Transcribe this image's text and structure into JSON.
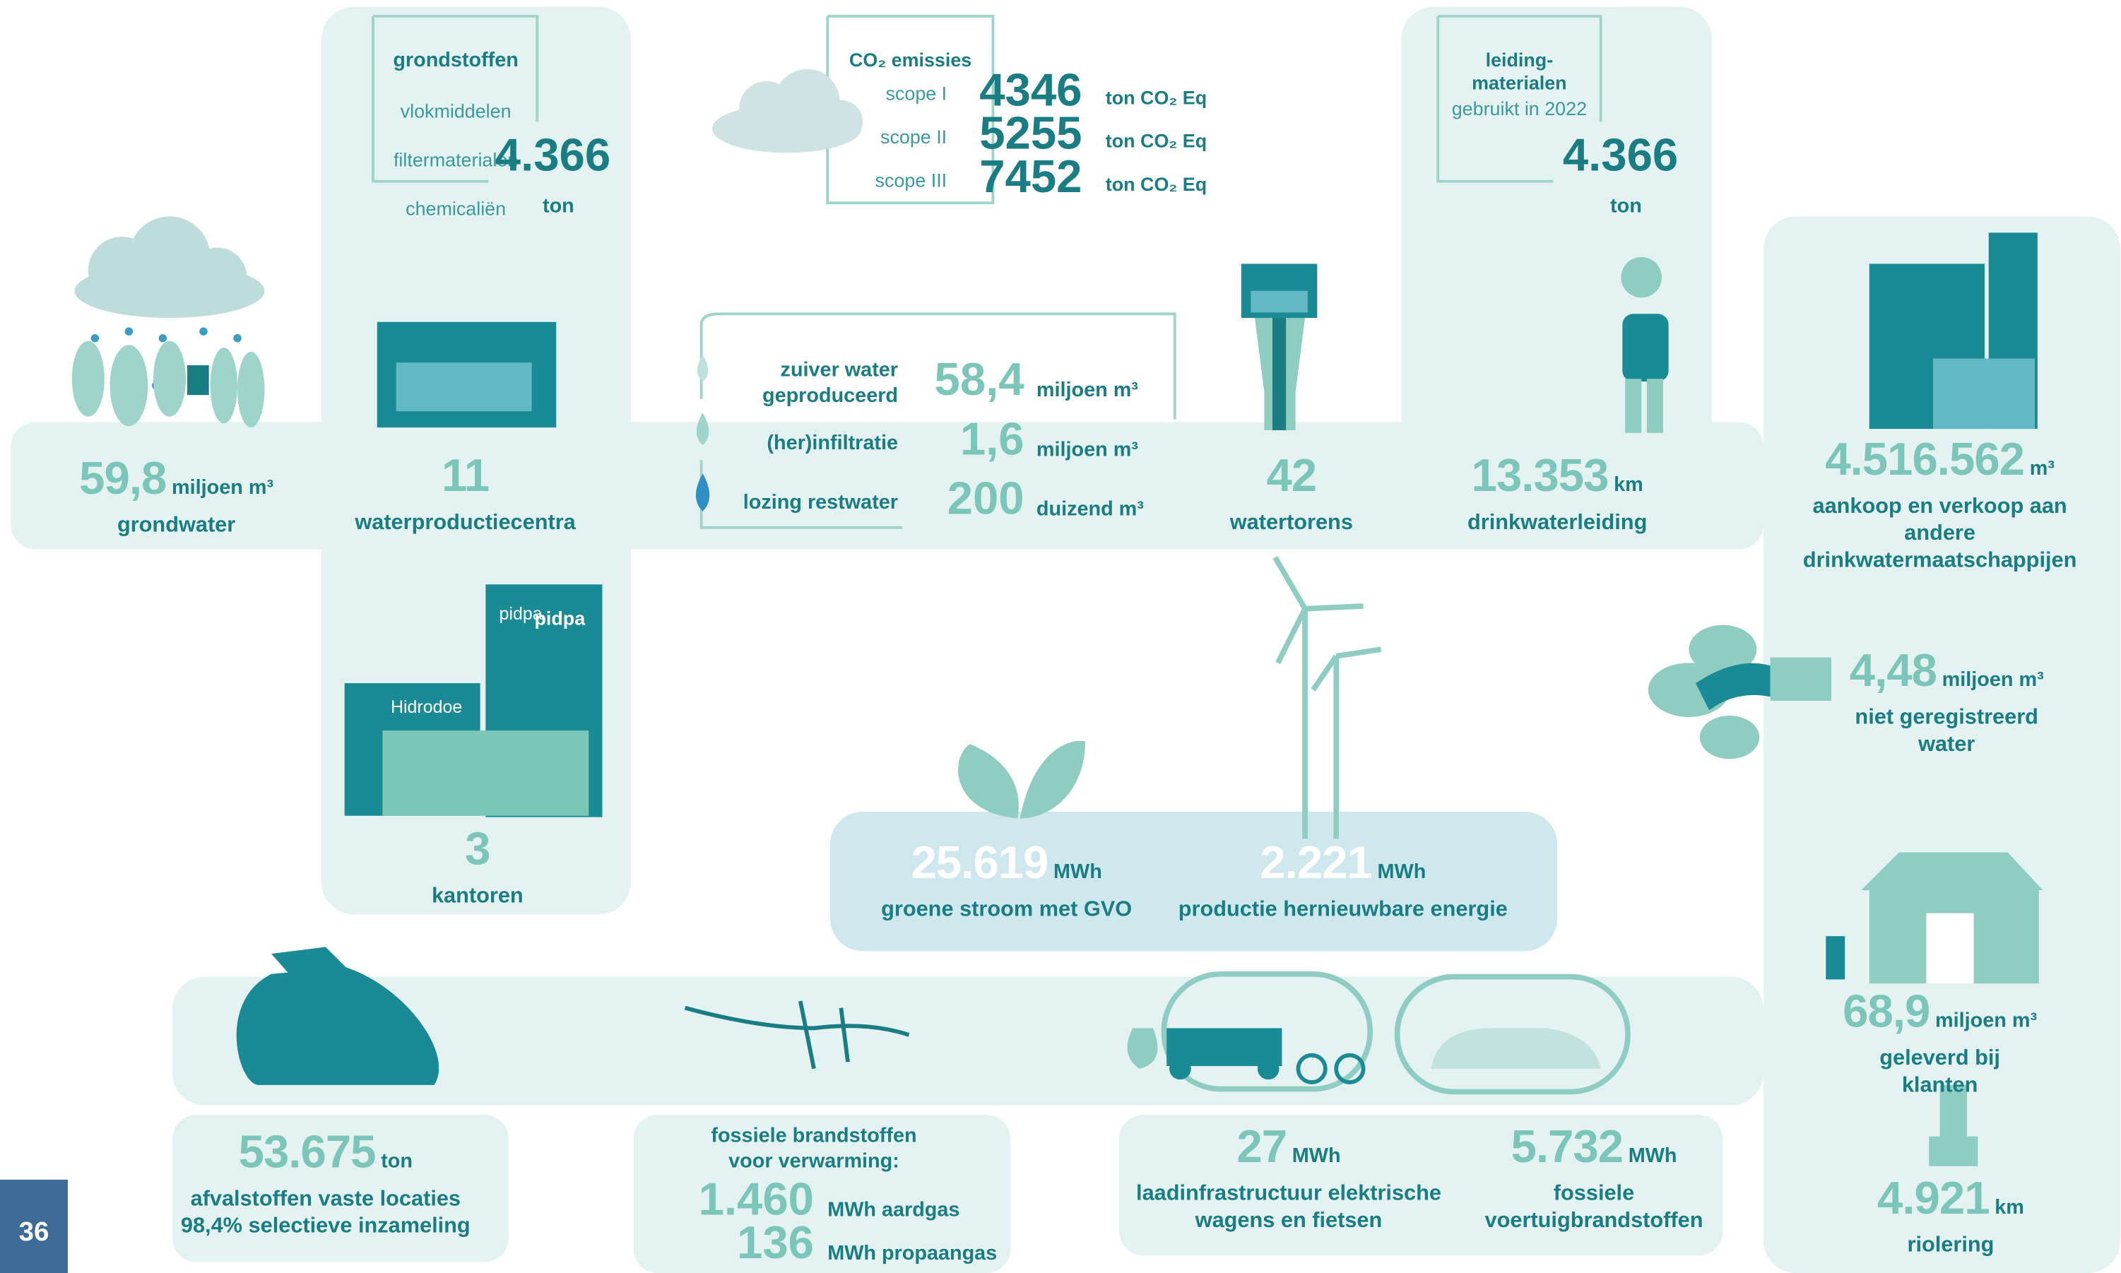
{
  "page_number": "36",
  "raw_materials": {
    "title": "grondstoffen",
    "lines": [
      "vlokmiddelen",
      "filtermaterialen",
      "chemicaliën"
    ],
    "value": "4.366",
    "unit": "ton"
  },
  "co2": {
    "title": "CO₂ emissies",
    "rows": [
      {
        "scope": "scope I",
        "value": "4346",
        "unit": "ton CO₂ Eq"
      },
      {
        "scope": "scope II",
        "value": "5255",
        "unit": "ton CO₂ Eq"
      },
      {
        "scope": "scope III",
        "value": "7452",
        "unit": "ton CO₂ Eq"
      }
    ]
  },
  "pipe_materials": {
    "title": "leiding-\nmaterialen",
    "subtitle": "gebruikt in 2022",
    "value": "4.366",
    "unit": "ton"
  },
  "water": {
    "rows": [
      {
        "label": "zuiver water\ngeproduceerd",
        "value": "58,4",
        "unit": "miljoen m³"
      },
      {
        "label": "(her)infiltratie",
        "value": "1,6",
        "unit": "miljoen m³"
      },
      {
        "label": "lozing restwater",
        "value": "200",
        "unit": "duizend m³"
      }
    ]
  },
  "fossil_heating": {
    "title": "fossiele brandstoffen\nvoor verwarming:",
    "rows": [
      {
        "value": "1.460",
        "unit": "MWh aardgas"
      },
      {
        "value": "136",
        "unit": "MWh propaangas"
      }
    ]
  },
  "icon_labels": {
    "pidpa": "pidpa",
    "hidrodoe": "Hidrodoe"
  },
  "stats": [
    {
      "value": "59,8",
      "unit": "miljoen m³",
      "label": "grondwater"
    },
    {
      "value": "11",
      "label": "waterproductiecentra"
    },
    {
      "value": "42",
      "label": "watertorens"
    },
    {
      "value": "13.353",
      "unit": "km",
      "label": "drinkwaterleiding"
    },
    {
      "value": "4.516.562",
      "unit": "m³",
      "label": "aankoop en verkoop aan andere\ndrinkwatermaatschappijen"
    },
    {
      "value": "3",
      "label": "kantoren"
    },
    {
      "value": "4,48",
      "unit": "miljoen m³",
      "label": "niet geregistreerd water"
    },
    {
      "value": "25.619",
      "unit": "MWh",
      "label": "groene stroom met GVO"
    },
    {
      "value": "2.221",
      "unit": "MWh",
      "label": "productie hernieuwbare energie"
    },
    {
      "value": "68,9",
      "unit": "miljoen m³",
      "label": "geleverd bij klanten"
    },
    {
      "value": "53.675",
      "unit": "ton",
      "label": "afvalstoffen vaste locaties\n98,4% selectieve inzameling"
    },
    {
      "value": "27",
      "unit": "MWh",
      "label": "laadinfrastructuur elektrische\nwagens en fietsen"
    },
    {
      "value": "5.732",
      "unit": "MWh",
      "label": "fossiele\nvoertuigbrandstoffen"
    },
    {
      "value": "4.921",
      "unit": "km",
      "label": "riolering"
    }
  ]
}
